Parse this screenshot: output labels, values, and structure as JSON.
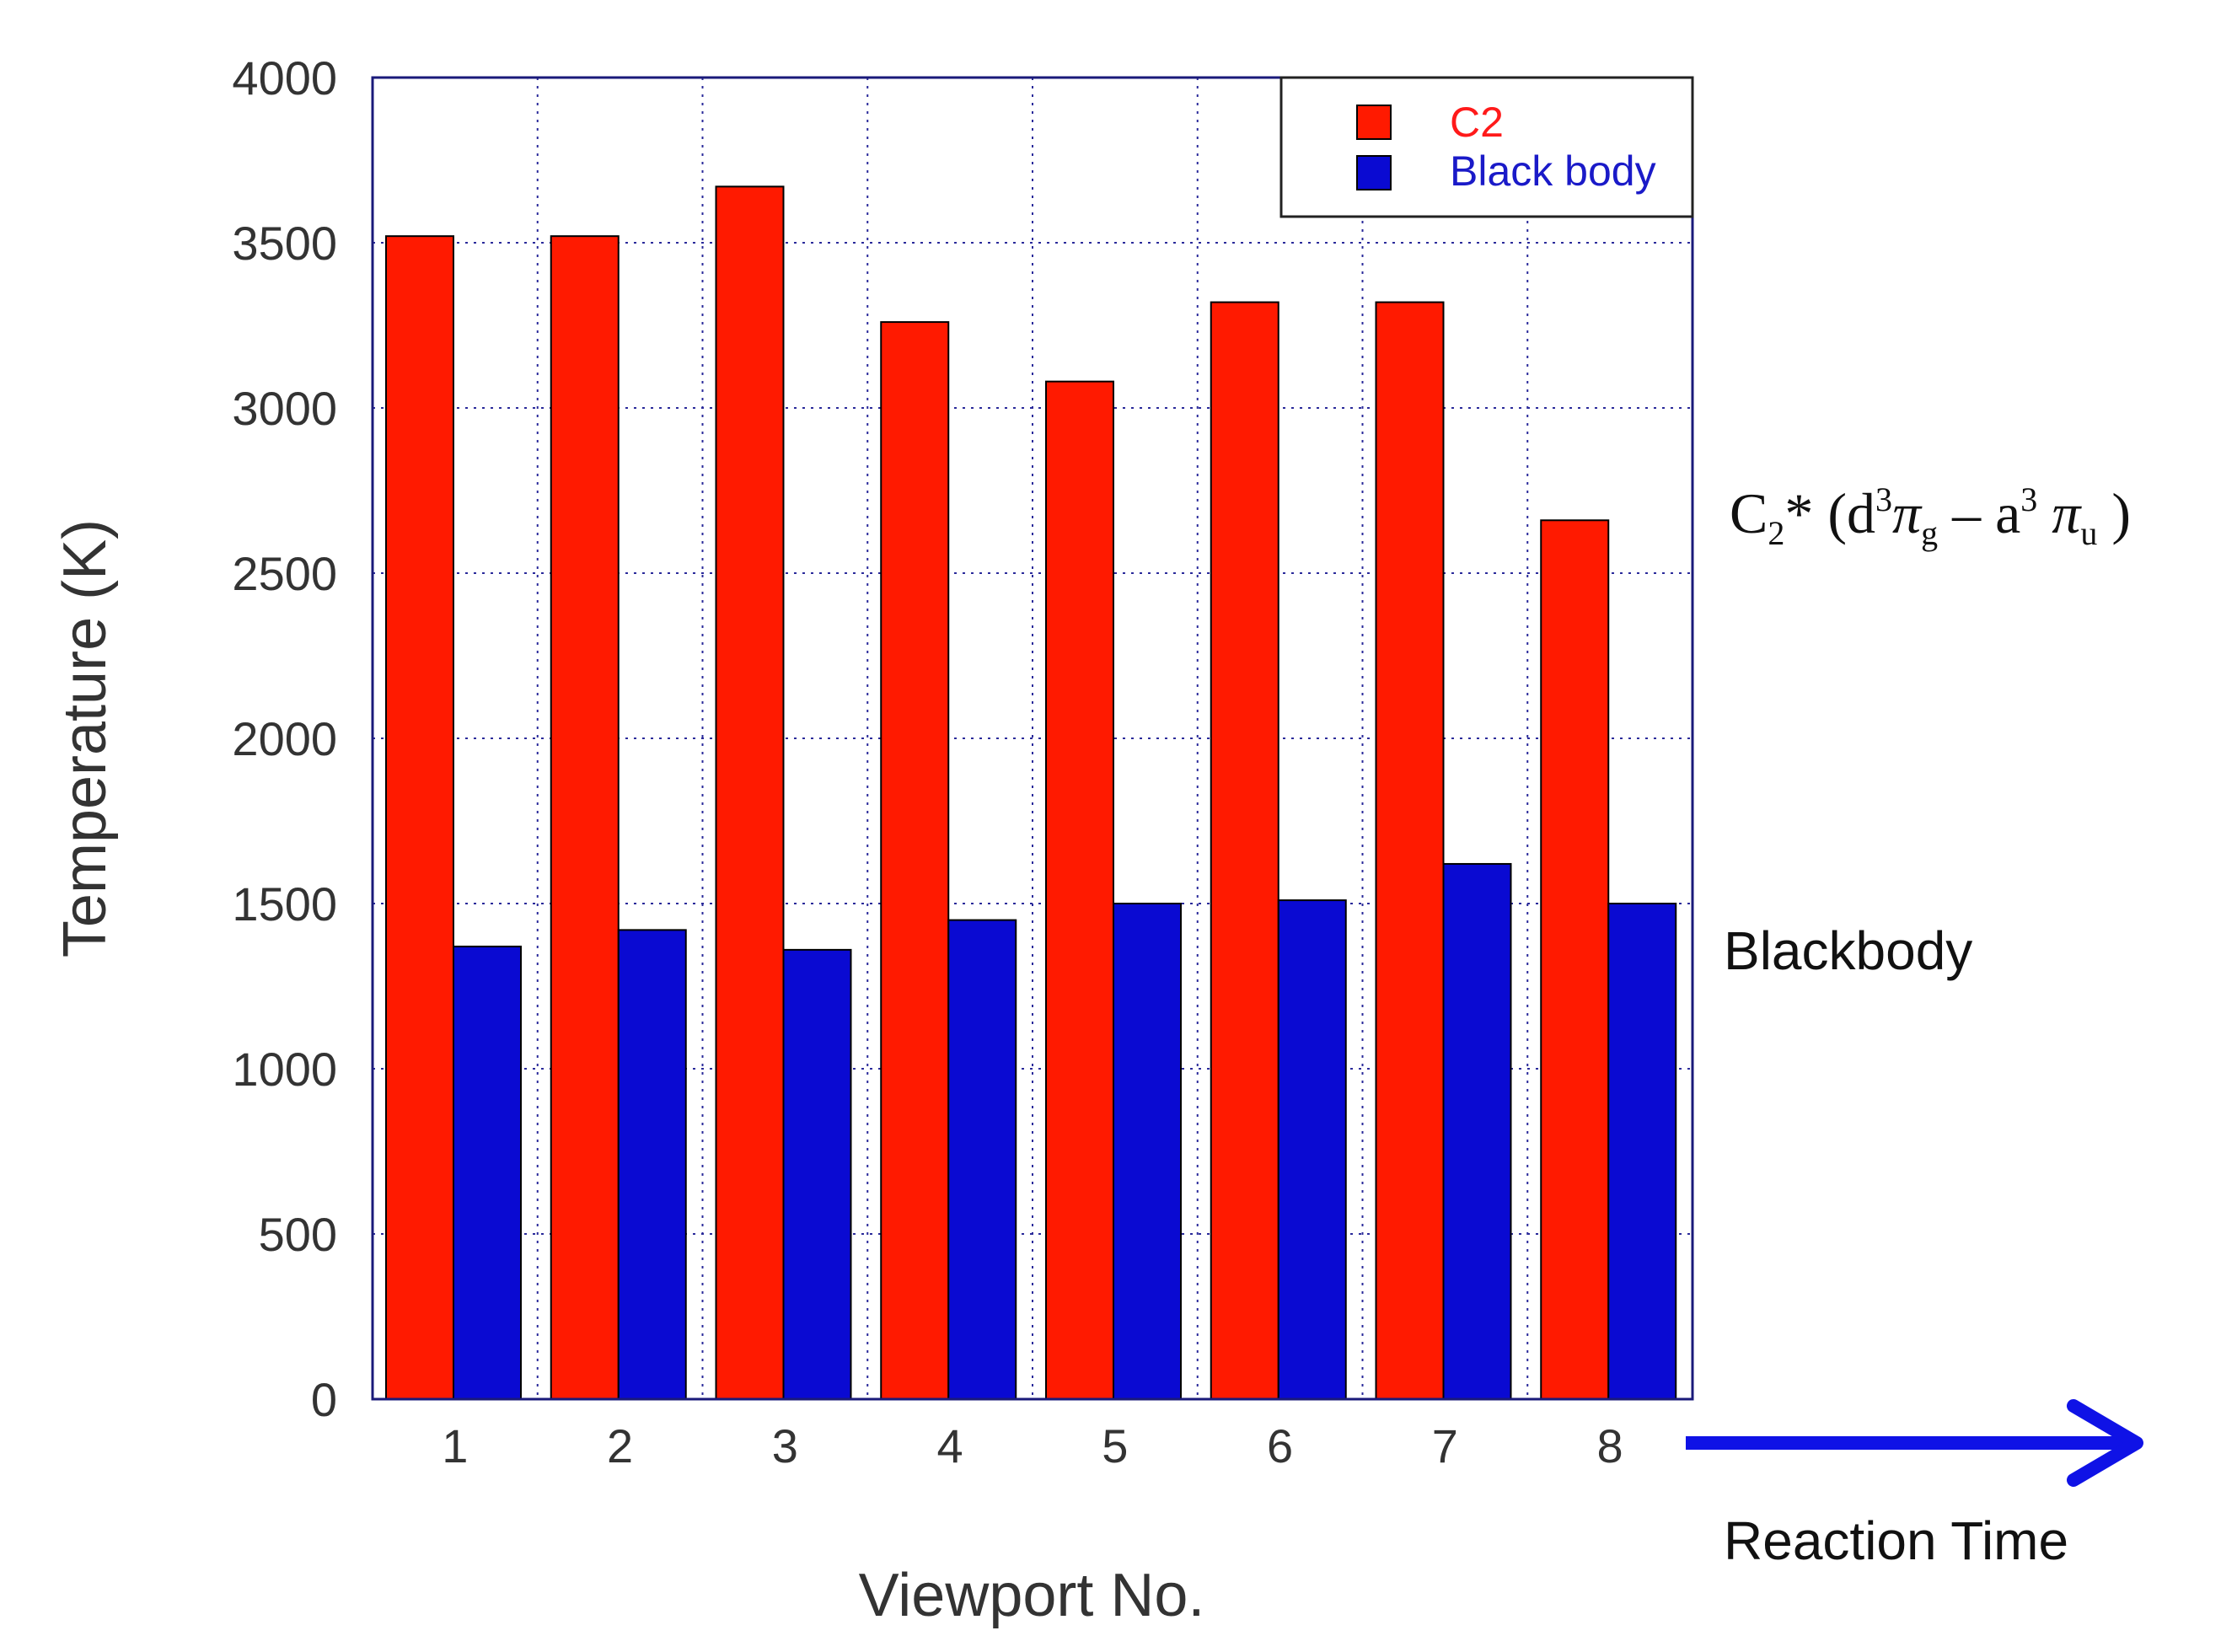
{
  "chart_data": {
    "type": "bar",
    "title": "",
    "xlabel": "Viewport No.",
    "ylabel": "Temperature (K)",
    "categories": [
      "1",
      "2",
      "3",
      "4",
      "5",
      "6",
      "7",
      "8"
    ],
    "series": [
      {
        "name": "C2",
        "color": "#ff1a00",
        "label_color": "#ff1a1a",
        "values": [
          3520,
          3520,
          3670,
          3260,
          3080,
          3320,
          3320,
          2660
        ]
      },
      {
        "name": "Black body",
        "color": "#0a0ad2",
        "label_color": "#1a1ac8",
        "values": [
          1370,
          1420,
          1360,
          1450,
          1500,
          1510,
          1620,
          1500
        ]
      }
    ],
    "ylim": [
      0,
      4000
    ],
    "yticks": [
      "0",
      "500",
      "1000",
      "1500",
      "2000",
      "2500",
      "3000",
      "3500",
      "4000"
    ],
    "grid": true,
    "legend_position": "top-right"
  },
  "annotations": {
    "c2_label": {
      "base": "C",
      "sub1": "2",
      "star": "* (d",
      "sup1": "3",
      "pi1": "π",
      "sub2": "g",
      "dash": " – a",
      "sup2": "3",
      "pi2": " π",
      "sub3": "u",
      "close": " )"
    },
    "blackbody_label": "Blackbody",
    "arrow_color": "#0f12e6",
    "arrow_label": "Reaction Time"
  }
}
